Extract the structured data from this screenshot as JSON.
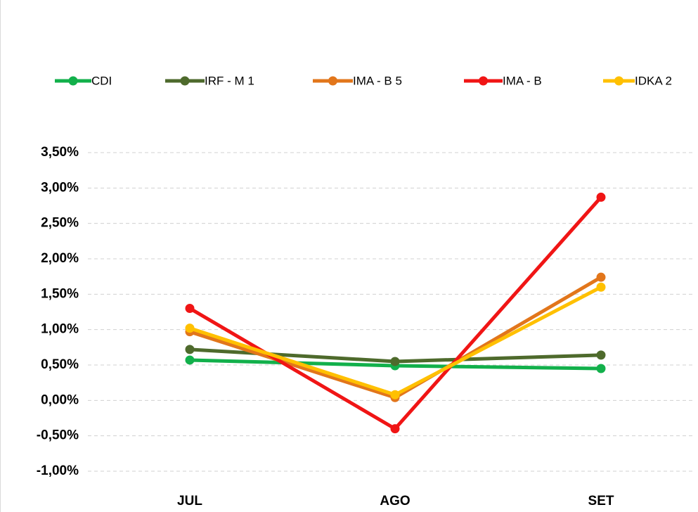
{
  "chart_data": {
    "type": "line",
    "categories": [
      "JUL",
      "AGO",
      "SET"
    ],
    "series": [
      {
        "name": "CDI",
        "color": "#12b04b",
        "values": [
          0.57,
          0.49,
          0.45
        ]
      },
      {
        "name": "IRF - M 1",
        "color": "#4e6a2c",
        "values": [
          0.72,
          0.55,
          0.64
        ]
      },
      {
        "name": "IMA - B 5",
        "color": "#e2761b",
        "values": [
          0.97,
          0.04,
          1.74
        ]
      },
      {
        "name": "IMA - B",
        "color": "#f01515",
        "values": [
          1.3,
          -0.4,
          2.87
        ]
      },
      {
        "name": "IDKA 2",
        "color": "#ffc000",
        "values": [
          1.02,
          0.08,
          1.6
        ]
      }
    ],
    "ylim": [
      -1,
      3.5
    ],
    "yticks": [
      {
        "value": -1,
        "label": "-1,00%"
      },
      {
        "value": -0.5,
        "label": "-0,50%"
      },
      {
        "value": 0,
        "label": "0,00%"
      },
      {
        "value": 0.5,
        "label": "0,50%"
      },
      {
        "value": 1,
        "label": "1,00%"
      },
      {
        "value": 1.5,
        "label": "1,50%"
      },
      {
        "value": 2,
        "label": "2,00%"
      },
      {
        "value": 2.5,
        "label": "2,50%"
      },
      {
        "value": 3,
        "label": "3,00%"
      },
      {
        "value": 3.5,
        "label": "3,50%"
      }
    ],
    "grid": true,
    "legend": "top"
  }
}
